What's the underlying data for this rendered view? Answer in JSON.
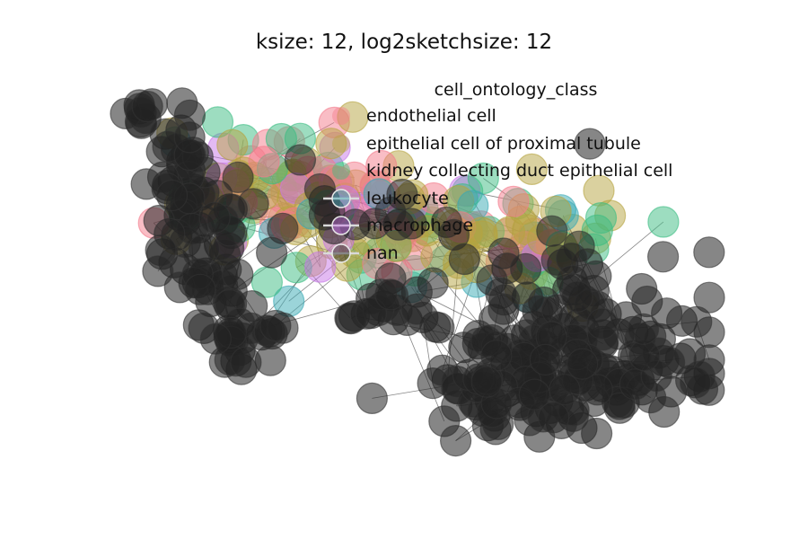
{
  "chart_data": {
    "type": "scatter",
    "title": "ksize: 12, log2sketchsize: 12",
    "xlabel": "",
    "ylabel": "",
    "axes_visible": false,
    "legend": {
      "title": "cell_ontology_class",
      "placement": "top-right"
    },
    "colors": {
      "endothelial cell": "#f37c8c",
      "epithelial cell of proximal tubule": "#b5a440",
      "kidney collecting duct epithelial cell": "#3bbc82",
      "leukocyte": "#38a9b4",
      "macrophage": "#c776e8",
      "nan": "#222222"
    },
    "series": [
      {
        "name": "endothelial cell",
        "marker": "circle"
      },
      {
        "name": "epithelial cell of proximal tubule",
        "marker": "circle"
      },
      {
        "name": "kidney collecting duct epithelial cell",
        "marker": "circle"
      },
      {
        "name": "leukocyte",
        "marker": "circle-with-line"
      },
      {
        "name": "macrophage",
        "marker": "circle-with-line"
      },
      {
        "name": "nan",
        "marker": "circle-with-line"
      }
    ],
    "edges_color": "#222222"
  }
}
